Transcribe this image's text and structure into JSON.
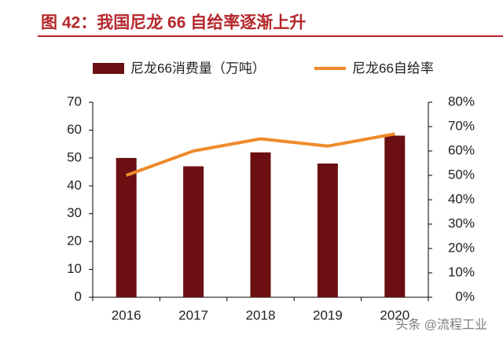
{
  "chart_data": {
    "type": "bar-line",
    "title": "图 42：我国尼龙 66 自给率逐渐上升",
    "categories": [
      "2016",
      "2017",
      "2018",
      "2019",
      "2020"
    ],
    "series": [
      {
        "name": "尼龙66消费量（万吨）",
        "type": "bar",
        "color": "#6b0f12",
        "values": [
          50,
          47,
          52,
          48,
          58
        ]
      },
      {
        "name": "尼龙66自给率",
        "type": "line",
        "axis": "y2",
        "color": "#ef8a2a",
        "values": [
          50,
          60,
          65,
          62,
          67
        ]
      }
    ],
    "ylim": [
      0,
      70
    ],
    "yticks": [
      0,
      10,
      20,
      30,
      40,
      50,
      60,
      70
    ],
    "y2lim": [
      0,
      80
    ],
    "y2ticks": [
      {
        "value": 0,
        "label": "0%"
      },
      {
        "value": 10,
        "label": "10%"
      },
      {
        "value": 20,
        "label": "20%"
      },
      {
        "value": 30,
        "label": "30%"
      },
      {
        "value": 40,
        "label": "40%"
      },
      {
        "value": 50,
        "label": "50%"
      },
      {
        "value": 60,
        "label": "60%"
      },
      {
        "value": 70,
        "label": "70%"
      },
      {
        "value": 80,
        "label": "80%"
      }
    ],
    "grid": false,
    "legend": "top",
    "watermark": "头条 @流程工业"
  }
}
